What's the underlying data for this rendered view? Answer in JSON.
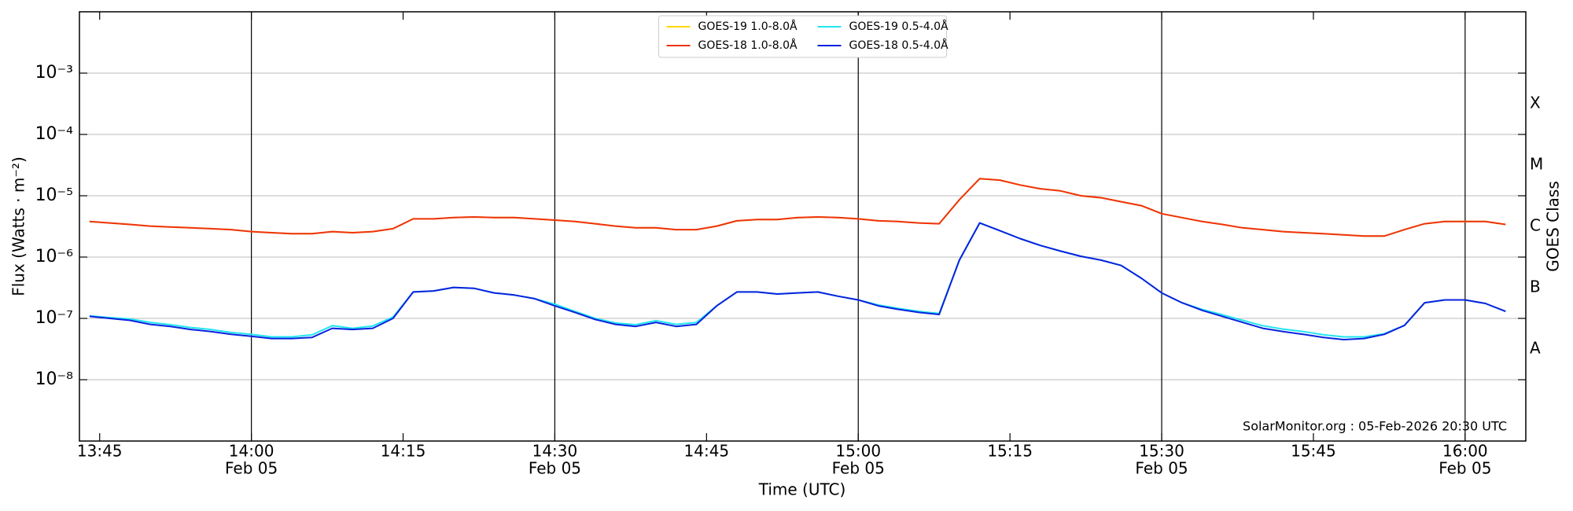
{
  "chart_data": {
    "type": "line",
    "x_label": "Time (UTC)",
    "y_label": "Flux (Watts · m⁻²)",
    "y2_label": "GOES Class",
    "annotation": "SolarMonitor.org : 05-Feb-2026 20:30 UTC",
    "log_scale": true,
    "grid": true,
    "legend": "upper center",
    "xlim": [
      "13:43",
      "16:06"
    ],
    "xticks": [
      {
        "value": "13:45",
        "label": "13:45"
      },
      {
        "value": "14:00",
        "label": "14:00",
        "date": "Feb 05"
      },
      {
        "value": "14:15",
        "label": "14:15"
      },
      {
        "value": "14:30",
        "label": "14:30",
        "date": "Feb 05"
      },
      {
        "value": "14:45",
        "label": "14:45"
      },
      {
        "value": "15:00",
        "label": "15:00",
        "date": "Feb 05"
      },
      {
        "value": "15:15",
        "label": "15:15"
      },
      {
        "value": "15:30",
        "label": "15:30",
        "date": "Feb 05"
      },
      {
        "value": "15:45",
        "label": "15:45"
      },
      {
        "value": "16:00",
        "label": "16:00",
        "date": "Feb 05"
      }
    ],
    "ylim": [
      1e-09,
      0.01
    ],
    "yticks": [
      {
        "value": 1e-08,
        "label": "10⁻⁸"
      },
      {
        "value": 1e-07,
        "label": "10⁻⁷"
      },
      {
        "value": 1e-06,
        "label": "10⁻⁶"
      },
      {
        "value": 1e-05,
        "label": "10⁻⁵"
      },
      {
        "value": 0.0001,
        "label": "10⁻⁴"
      },
      {
        "value": 0.001,
        "label": "10⁻³"
      }
    ],
    "y2lim": [
      1e-09,
      0.01
    ],
    "y2ticks": [
      {
        "value": 3.16e-08,
        "label": "A"
      },
      {
        "value": 3.16e-07,
        "label": "B"
      },
      {
        "value": 3.16e-06,
        "label": "C"
      },
      {
        "value": 3.16e-05,
        "label": "M"
      },
      {
        "value": 0.000316,
        "label": "X"
      }
    ],
    "x": [
      "13:44",
      "13:46",
      "13:48",
      "13:50",
      "13:52",
      "13:54",
      "13:56",
      "13:58",
      "14:00",
      "14:02",
      "14:04",
      "14:06",
      "14:08",
      "14:10",
      "14:12",
      "14:14",
      "14:16",
      "14:18",
      "14:20",
      "14:22",
      "14:24",
      "14:26",
      "14:28",
      "14:30",
      "14:32",
      "14:34",
      "14:36",
      "14:38",
      "14:40",
      "14:42",
      "14:44",
      "14:46",
      "14:48",
      "14:50",
      "14:52",
      "14:54",
      "14:56",
      "14:58",
      "15:00",
      "15:02",
      "15:04",
      "15:06",
      "15:08",
      "15:10",
      "15:12",
      "15:14",
      "15:16",
      "15:18",
      "15:20",
      "15:22",
      "15:24",
      "15:26",
      "15:28",
      "15:30",
      "15:32",
      "15:34",
      "15:36",
      "15:38",
      "15:40",
      "15:42",
      "15:44",
      "15:46",
      "15:48",
      "15:50",
      "15:52",
      "15:54",
      "15:56",
      "15:58",
      "16:00",
      "16:02",
      "16:04"
    ],
    "series": [
      {
        "name": "GOES-19 1.0-8.0Å",
        "color": "#ffd700",
        "values": [
          3.8e-06,
          3.6e-06,
          3.4e-06,
          3.2e-06,
          3.1e-06,
          3e-06,
          2.9e-06,
          2.8e-06,
          2.6e-06,
          2.5e-06,
          2.4e-06,
          2.4e-06,
          2.6e-06,
          2.5e-06,
          2.6e-06,
          2.9e-06,
          4.2e-06,
          4.2e-06,
          4.4e-06,
          4.5e-06,
          4.4e-06,
          4.4e-06,
          4.2e-06,
          4e-06,
          3.8e-06,
          3.5e-06,
          3.2e-06,
          3e-06,
          3e-06,
          2.8e-06,
          2.8e-06,
          3.2e-06,
          3.9e-06,
          4.1e-06,
          4.1e-06,
          4.4e-06,
          4.5e-06,
          4.4e-06,
          4.2e-06,
          3.9e-06,
          3.8e-06,
          3.6e-06,
          3.5e-06,
          8.6e-06,
          1.9e-05,
          1.8e-05,
          1.5e-05,
          1.3e-05,
          1.2e-05,
          1e-05,
          9.3e-06,
          8e-06,
          6.9e-06,
          5.1e-06,
          4.4e-06,
          3.8e-06,
          3.4e-06,
          3e-06,
          2.8e-06,
          2.6e-06,
          2.5e-06,
          2.4e-06,
          2.3e-06,
          2.2e-06,
          2.2e-06,
          2.8e-06,
          3.5e-06,
          3.8e-06,
          3.8e-06,
          3.8e-06,
          3.4e-06
        ]
      },
      {
        "name": "GOES-18 1.0-8.0Å",
        "color": "#ee3311",
        "values": [
          3.8e-06,
          3.6e-06,
          3.4e-06,
          3.2e-06,
          3.1e-06,
          3e-06,
          2.9e-06,
          2.8e-06,
          2.6e-06,
          2.5e-06,
          2.4e-06,
          2.4e-06,
          2.6e-06,
          2.5e-06,
          2.6e-06,
          2.9e-06,
          4.2e-06,
          4.2e-06,
          4.4e-06,
          4.5e-06,
          4.4e-06,
          4.4e-06,
          4.2e-06,
          4e-06,
          3.8e-06,
          3.5e-06,
          3.2e-06,
          3e-06,
          3e-06,
          2.8e-06,
          2.8e-06,
          3.2e-06,
          3.9e-06,
          4.1e-06,
          4.1e-06,
          4.4e-06,
          4.5e-06,
          4.4e-06,
          4.2e-06,
          3.9e-06,
          3.8e-06,
          3.6e-06,
          3.5e-06,
          8.6e-06,
          1.9e-05,
          1.8e-05,
          1.5e-05,
          1.3e-05,
          1.2e-05,
          1e-05,
          9.3e-06,
          8e-06,
          6.9e-06,
          5.1e-06,
          4.4e-06,
          3.8e-06,
          3.4e-06,
          3e-06,
          2.8e-06,
          2.6e-06,
          2.5e-06,
          2.4e-06,
          2.3e-06,
          2.2e-06,
          2.2e-06,
          2.8e-06,
          3.5e-06,
          3.8e-06,
          3.8e-06,
          3.8e-06,
          3.4e-06
        ]
      },
      {
        "name": "GOES-19 0.5-4.0Å",
        "color": "#22e5f0",
        "values": [
          1.1e-07,
          1.03e-07,
          9.8e-08,
          8.6e-08,
          7.9e-08,
          7.1e-08,
          6.6e-08,
          5.9e-08,
          5.5e-08,
          5e-08,
          5e-08,
          5.4e-08,
          7.6e-08,
          6.9e-08,
          7.5e-08,
          1.05e-07,
          2.7e-07,
          2.8e-07,
          3.2e-07,
          3.1e-07,
          2.6e-07,
          2.4e-07,
          2.1e-07,
          1.7e-07,
          1.3e-07,
          1e-07,
          8.4e-08,
          7.9e-08,
          9.2e-08,
          8e-08,
          8.6e-08,
          1.6e-07,
          2.7e-07,
          2.7e-07,
          2.5e-07,
          2.6e-07,
          2.7e-07,
          2.3e-07,
          2e-07,
          1.65e-07,
          1.45e-07,
          1.3e-07,
          1.2e-07,
          8.9e-07,
          3.6e-06,
          2.7e-06,
          2e-06,
          1.55e-06,
          1.25e-06,
          1.03e-06,
          8.9e-07,
          7.3e-07,
          4.5e-07,
          2.6e-07,
          1.8e-07,
          1.4e-07,
          1.15e-07,
          9.3e-08,
          7.6e-08,
          6.7e-08,
          6.1e-08,
          5.4e-08,
          5e-08,
          5e-08,
          5.6e-08,
          7.7e-08,
          1.8e-07,
          2e-07,
          2e-07,
          1.75e-07,
          1.3e-07
        ]
      },
      {
        "name": "GOES-18 0.5-4.0Å",
        "color": "#0a22dd",
        "values": [
          1.08e-07,
          1e-07,
          9.3e-08,
          8e-08,
          7.4e-08,
          6.6e-08,
          6.1e-08,
          5.5e-08,
          5.1e-08,
          4.7e-08,
          4.7e-08,
          4.9e-08,
          6.9e-08,
          6.6e-08,
          6.9e-08,
          1e-07,
          2.7e-07,
          2.8e-07,
          3.2e-07,
          3.1e-07,
          2.6e-07,
          2.4e-07,
          2.1e-07,
          1.6e-07,
          1.25e-07,
          9.6e-08,
          8e-08,
          7.4e-08,
          8.6e-08,
          7.4e-08,
          8e-08,
          1.6e-07,
          2.7e-07,
          2.7e-07,
          2.5e-07,
          2.6e-07,
          2.7e-07,
          2.3e-07,
          2e-07,
          1.6e-07,
          1.4e-07,
          1.25e-07,
          1.16e-07,
          8.9e-07,
          3.6e-06,
          2.7e-06,
          2e-06,
          1.55e-06,
          1.25e-06,
          1.03e-06,
          8.9e-07,
          7.3e-07,
          4.5e-07,
          2.6e-07,
          1.8e-07,
          1.35e-07,
          1.08e-07,
          8.6e-08,
          6.9e-08,
          6.1e-08,
          5.5e-08,
          4.9e-08,
          4.5e-08,
          4.7e-08,
          5.5e-08,
          7.7e-08,
          1.8e-07,
          2e-07,
          2e-07,
          1.75e-07,
          1.3e-07
        ]
      }
    ]
  }
}
